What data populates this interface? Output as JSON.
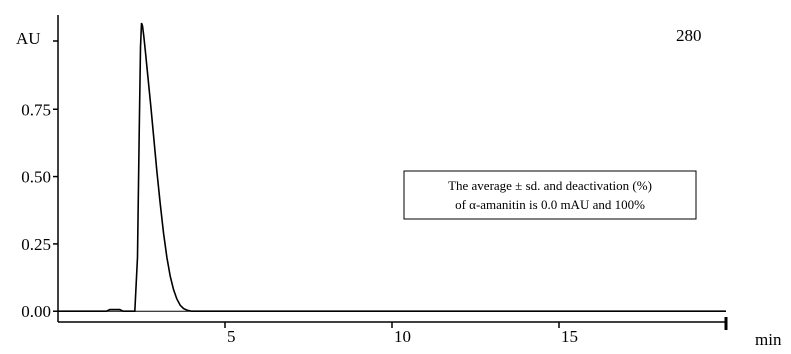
{
  "chart_data": {
    "type": "line",
    "title": "",
    "wavelength_label": "280",
    "xlabel": "min",
    "ylabel": "AU",
    "xlim": [
      0,
      20
    ],
    "ylim": [
      -0.04,
      1.1
    ],
    "x_ticks": [
      {
        "value": 5,
        "label": "5"
      },
      {
        "value": 10,
        "label": "10"
      },
      {
        "value": 15,
        "label": "15"
      }
    ],
    "y_ticks": [
      {
        "value": 0.0,
        "label": "0.00"
      },
      {
        "value": 0.25,
        "label": "0.25"
      },
      {
        "value": 0.5,
        "label": "0.50"
      },
      {
        "value": 0.75,
        "label": "0.75"
      }
    ],
    "annotation": {
      "line1": "The average ± sd.  and  deactivation (%)",
      "line2": "of α-amanitin  is 0.0 mAU and 100%"
    },
    "series": [
      {
        "color": "#000000",
        "points": [
          [
            0,
            0.0
          ],
          [
            1.45,
            0.0
          ],
          [
            1.55,
            0.006
          ],
          [
            1.85,
            0.006
          ],
          [
            1.95,
            0.0
          ],
          [
            2.3,
            0.0
          ],
          [
            2.38,
            0.2
          ],
          [
            2.43,
            0.65
          ],
          [
            2.47,
            0.98
          ],
          [
            2.5,
            1.07
          ],
          [
            2.53,
            1.06
          ],
          [
            2.57,
            1.02
          ],
          [
            2.62,
            0.96
          ],
          [
            2.7,
            0.86
          ],
          [
            2.78,
            0.76
          ],
          [
            2.87,
            0.64
          ],
          [
            2.96,
            0.52
          ],
          [
            3.06,
            0.4
          ],
          [
            3.16,
            0.29
          ],
          [
            3.26,
            0.2
          ],
          [
            3.36,
            0.13
          ],
          [
            3.46,
            0.08
          ],
          [
            3.56,
            0.045
          ],
          [
            3.66,
            0.022
          ],
          [
            3.76,
            0.01
          ],
          [
            3.86,
            0.004
          ],
          [
            4.0,
            0.0
          ],
          [
            20,
            0.0
          ]
        ]
      }
    ]
  }
}
